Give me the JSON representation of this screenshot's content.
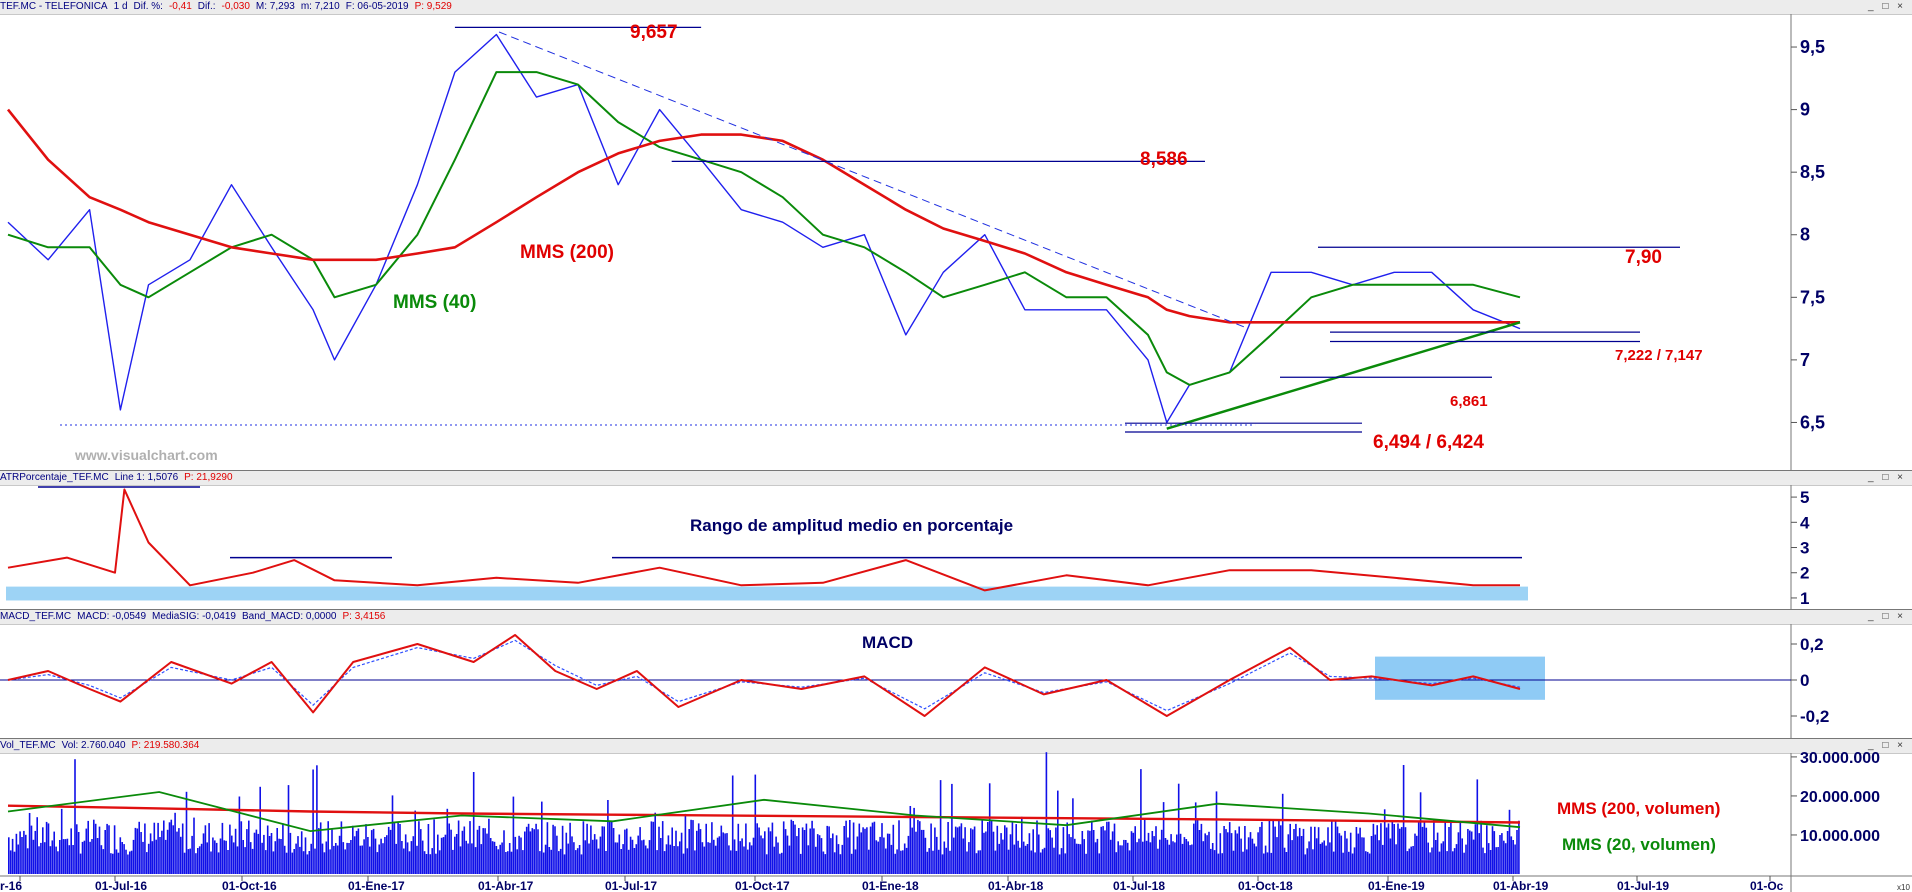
{
  "headers": {
    "price": [
      {
        "text": "TEF.MC - TELEFONICA",
        "c": "blue"
      },
      {
        "text": "1 d",
        "c": "blue"
      },
      {
        "text": "Dif. %:",
        "c": "blue"
      },
      {
        "text": "-0,41",
        "c": "red"
      },
      {
        "text": "Dif.:",
        "c": "blue"
      },
      {
        "text": "-0,030",
        "c": "red"
      },
      {
        "text": "M: 7,293",
        "c": "blue"
      },
      {
        "text": "m: 7,210",
        "c": "blue"
      },
      {
        "text": "F: 06-05-2019",
        "c": "blue"
      },
      {
        "text": "P: 9,529",
        "c": "red"
      }
    ],
    "atr": [
      {
        "text": "ATRPorcentaje_TEF.MC",
        "c": "blue"
      },
      {
        "text": "Line 1: 1,5076",
        "c": "blue"
      },
      {
        "text": "P: 21,9290",
        "c": "red"
      }
    ],
    "macd": [
      {
        "text": "MACD_TEF.MC",
        "c": "blue"
      },
      {
        "text": "MACD: -0,0549",
        "c": "blue"
      },
      {
        "text": "MediaSIG: -0,0419",
        "c": "blue"
      },
      {
        "text": "Band_MACD: 0,0000",
        "c": "blue"
      },
      {
        "text": "P: 3,4156",
        "c": "red"
      }
    ],
    "vol": [
      {
        "text": "Vol_TEF.MC",
        "c": "blue"
      },
      {
        "text": "Vol: 2.760.040",
        "c": "blue"
      },
      {
        "text": "P: 219.580.364",
        "c": "red"
      }
    ]
  },
  "window_buttons": "_ □ ×",
  "watermark": "www.visualchart.com",
  "x_axis": {
    "labels": [
      "r-16",
      "01-Jul-16",
      "01-Oct-16",
      "01-Ene-17",
      "01-Abr-17",
      "01-Jul-17",
      "01-Oct-17",
      "01-Ene-18",
      "01-Abr-18",
      "01-Jul-18",
      "01-Oct-18",
      "01-Ene-19",
      "01-Abr-19",
      "01-Jul-19",
      "01-Oc"
    ],
    "zoom_label": "x10"
  },
  "chart_data": [
    {
      "id": "price",
      "type": "line",
      "title": "TEF.MC - TELEFONICA",
      "x": [
        "2016-04-01",
        "2016-05-01",
        "2016-06-01",
        "2016-06-24",
        "2016-07-15",
        "2016-08-15",
        "2016-09-15",
        "2016-10-15",
        "2016-11-15",
        "2016-12-01",
        "2017-01-01",
        "2017-02-01",
        "2017-03-01",
        "2017-04-01",
        "2017-05-01",
        "2017-06-01",
        "2017-07-01",
        "2017-08-01",
        "2017-09-01",
        "2017-10-01",
        "2017-11-01",
        "2017-12-01",
        "2018-01-01",
        "2018-02-01",
        "2018-03-01",
        "2018-04-01",
        "2018-05-01",
        "2018-06-01",
        "2018-07-01",
        "2018-08-01",
        "2018-08-15",
        "2018-09-01",
        "2018-10-01",
        "2018-11-01",
        "2018-12-01",
        "2019-01-01",
        "2019-02-01",
        "2019-03-01",
        "2019-04-01",
        "2019-05-06"
      ],
      "series": [
        {
          "name": "TEF.MC",
          "color": "#2020ee",
          "values": [
            8.1,
            7.8,
            8.2,
            6.6,
            7.6,
            7.8,
            8.4,
            7.9,
            7.4,
            7.0,
            7.6,
            8.4,
            9.3,
            9.6,
            9.1,
            9.2,
            8.4,
            9.0,
            8.6,
            8.2,
            8.1,
            7.9,
            8.0,
            7.2,
            7.7,
            8.0,
            7.4,
            7.4,
            7.4,
            7.0,
            6.5,
            6.8,
            6.9,
            7.7,
            7.7,
            7.6,
            7.7,
            7.7,
            7.4,
            7.25
          ]
        },
        {
          "name": "MMS (40)",
          "color": "#0a8a0a",
          "values": [
            8.0,
            7.9,
            7.9,
            7.6,
            7.5,
            7.7,
            7.9,
            8.0,
            7.8,
            7.5,
            7.6,
            8.0,
            8.6,
            9.3,
            9.3,
            9.2,
            8.9,
            8.7,
            8.6,
            8.5,
            8.3,
            8.0,
            7.9,
            7.7,
            7.5,
            7.6,
            7.7,
            7.5,
            7.5,
            7.2,
            6.9,
            6.8,
            6.9,
            7.2,
            7.5,
            7.6,
            7.6,
            7.6,
            7.6,
            7.5
          ]
        },
        {
          "name": "MMS (200)",
          "color": "#e01010",
          "values": [
            9.0,
            8.6,
            8.3,
            8.2,
            8.1,
            8.0,
            7.9,
            7.85,
            7.8,
            7.8,
            7.8,
            7.85,
            7.9,
            8.1,
            8.3,
            8.5,
            8.65,
            8.75,
            8.8,
            8.8,
            8.75,
            8.6,
            8.4,
            8.2,
            8.05,
            7.95,
            7.85,
            7.7,
            7.6,
            7.5,
            7.4,
            7.35,
            7.3,
            7.3,
            7.3,
            7.3,
            7.3,
            7.3,
            7.3,
            7.3
          ]
        }
      ],
      "ylim": [
        6.2,
        9.7
      ],
      "yticks": [
        "6,5",
        "7",
        "7,5",
        "8",
        "8,5",
        "9",
        "9,5"
      ],
      "levels": [
        {
          "label": "9,657",
          "value": 9.657
        },
        {
          "label": "8,586",
          "value": 8.586
        },
        {
          "label": "7,90",
          "value": 7.9
        },
        {
          "label": "7,222 / 7,147",
          "value": 7.222,
          "value2": 7.147
        },
        {
          "label": "6,861",
          "value": 6.861
        },
        {
          "label": "6,494 / 6,424",
          "value": 6.494,
          "value2": 6.424
        }
      ],
      "annotations": [
        "MMS (200)",
        "MMS (40)"
      ]
    },
    {
      "id": "atr",
      "type": "line",
      "title": "Rango de amplitud medio en porcentaje",
      "x": [
        "2016-04-01",
        "2016-05-15",
        "2016-06-20",
        "2016-06-27",
        "2016-07-15",
        "2016-08-15",
        "2016-10-01",
        "2016-11-01",
        "2016-12-01",
        "2017-02-01",
        "2017-04-01",
        "2017-06-01",
        "2017-08-01",
        "2017-10-01",
        "2017-12-01",
        "2018-02-01",
        "2018-04-01",
        "2018-06-01",
        "2018-08-01",
        "2018-10-01",
        "2018-12-01",
        "2019-02-01",
        "2019-04-01",
        "2019-05-06"
      ],
      "series": [
        {
          "name": "Line 1",
          "color": "#e01010",
          "values": [
            2.2,
            2.6,
            2.0,
            5.3,
            3.2,
            1.5,
            2.0,
            2.5,
            1.7,
            1.5,
            1.8,
            1.6,
            2.2,
            1.5,
            1.6,
            2.5,
            1.3,
            1.9,
            1.5,
            2.1,
            2.1,
            1.8,
            1.5,
            1.5
          ]
        }
      ],
      "ylim": [
        0.8,
        5.4
      ],
      "yticks": [
        "1",
        "2",
        "3",
        "4",
        "5"
      ]
    },
    {
      "id": "macd",
      "type": "line",
      "title": "MACD",
      "x": [
        "2016-04-01",
        "2016-05-01",
        "2016-06-01",
        "2016-06-24",
        "2016-08-01",
        "2016-09-15",
        "2016-10-15",
        "2016-11-15",
        "2016-12-15",
        "2017-02-01",
        "2017-03-15",
        "2017-04-15",
        "2017-05-15",
        "2017-06-15",
        "2017-07-15",
        "2017-08-15",
        "2017-10-01",
        "2017-11-15",
        "2018-01-01",
        "2018-02-15",
        "2018-04-01",
        "2018-05-15",
        "2018-07-01",
        "2018-08-15",
        "2018-10-01",
        "2018-11-15",
        "2018-12-15",
        "2019-01-15",
        "2019-03-01",
        "2019-04-01",
        "2019-05-06"
      ],
      "series": [
        {
          "name": "MACD",
          "color": "#e01010",
          "values": [
            0.0,
            0.05,
            -0.05,
            -0.12,
            0.1,
            -0.02,
            0.1,
            -0.18,
            0.1,
            0.2,
            0.1,
            0.25,
            0.05,
            -0.05,
            0.05,
            -0.15,
            0.0,
            -0.05,
            0.02,
            -0.2,
            0.07,
            -0.08,
            0.0,
            -0.2,
            0.0,
            0.18,
            0.0,
            0.02,
            -0.03,
            0.02,
            -0.05
          ]
        },
        {
          "name": "MediaSIG",
          "color": "#3050ff",
          "values": [
            0.0,
            0.03,
            -0.03,
            -0.1,
            0.07,
            0.0,
            0.07,
            -0.14,
            0.07,
            0.18,
            0.12,
            0.22,
            0.08,
            -0.03,
            0.02,
            -0.12,
            -0.01,
            -0.04,
            0.01,
            -0.16,
            0.04,
            -0.07,
            -0.01,
            -0.17,
            -0.02,
            0.15,
            0.02,
            0.01,
            -0.02,
            0.01,
            -0.04
          ]
        }
      ],
      "ylim": [
        -0.3,
        0.3
      ],
      "yticks": [
        "-0,2",
        "0",
        "0,2"
      ]
    },
    {
      "id": "vol",
      "type": "bar",
      "x_range": [
        "2016-04-01",
        "2019-05-06"
      ],
      "ylim": [
        0,
        31000000
      ],
      "yticks": [
        "10.000.000",
        "20.000.000",
        "30.000.000"
      ],
      "series": [
        {
          "name": "MMS (200, volumen)",
          "color": "#e01010",
          "values": [
            17500000,
            16800000,
            16000000,
            15500000,
            15200000,
            14900000,
            14600000,
            14300000,
            14000000,
            13600000,
            13200000
          ]
        },
        {
          "name": "MMS (20, volumen)",
          "color": "#0a8a0a",
          "values": [
            16000000,
            21000000,
            11000000,
            15000000,
            13500000,
            19000000,
            15000000,
            12500000,
            18000000,
            15500000,
            12000000
          ]
        }
      ],
      "bar_color": "#1010e8",
      "annotations": [
        "MMS (200, volumen)",
        "MMS (20, volumen)"
      ]
    }
  ]
}
